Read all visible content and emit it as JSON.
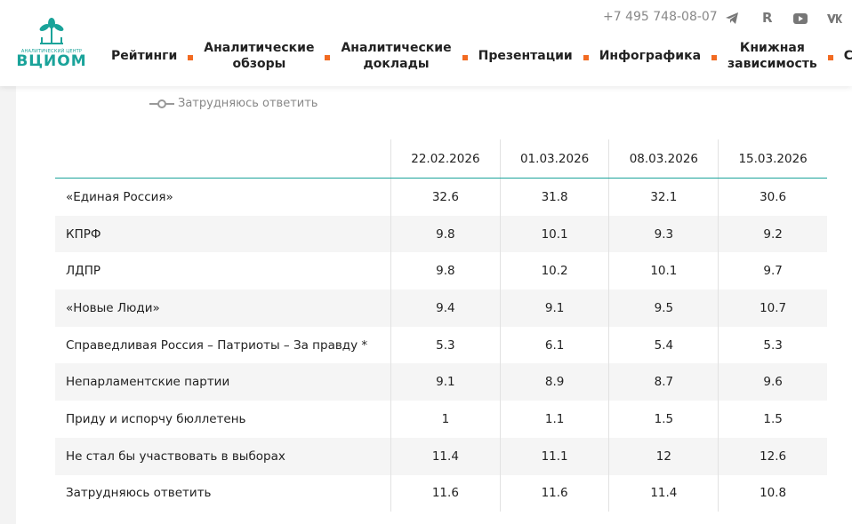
{
  "header": {
    "logo_caption": "АНАЛИТИЧЕСКИЙ ЦЕНТР",
    "logo_name": "ВЦИОМ",
    "phone": "+7 495 748-08-07",
    "nav": [
      "Рейтинги",
      "Аналитические обзоры",
      "Аналитические доклады",
      "Презентации",
      "Инфографика",
      "Книжная зависимость",
      "События"
    ]
  },
  "legend": {
    "label": "Затрудняюсь ответить"
  },
  "table": {
    "columns": [
      "22.02.2026",
      "01.03.2026",
      "08.03.2026",
      "15.03.2026"
    ],
    "rows": [
      {
        "label": "«Единая Россия»",
        "values": [
          32.6,
          31.8,
          32.1,
          30.6
        ]
      },
      {
        "label": "КПРФ",
        "values": [
          9.8,
          10.1,
          9.3,
          9.2
        ]
      },
      {
        "label": "ЛДПР",
        "values": [
          9.8,
          10.2,
          10.1,
          9.7
        ]
      },
      {
        "label": "«Новые Люди»",
        "values": [
          9.4,
          9.1,
          9.5,
          10.7
        ]
      },
      {
        "label": "Справедливая Россия – Патриоты – За правду *",
        "values": [
          5.3,
          6.1,
          5.4,
          5.3
        ]
      },
      {
        "label": "Непарламентские партии",
        "values": [
          9.1,
          8.9,
          8.7,
          9.6
        ]
      },
      {
        "label": "Приду и испорчу бюллетень",
        "values": [
          1,
          1.1,
          1.5,
          1.5
        ]
      },
      {
        "label": "Не стал бы участвовать в выборах",
        "values": [
          11.4,
          11.1,
          12,
          12.6
        ]
      },
      {
        "label": "Затрудняюсь ответить",
        "values": [
          11.6,
          11.6,
          11.4,
          10.8
        ]
      }
    ]
  }
}
